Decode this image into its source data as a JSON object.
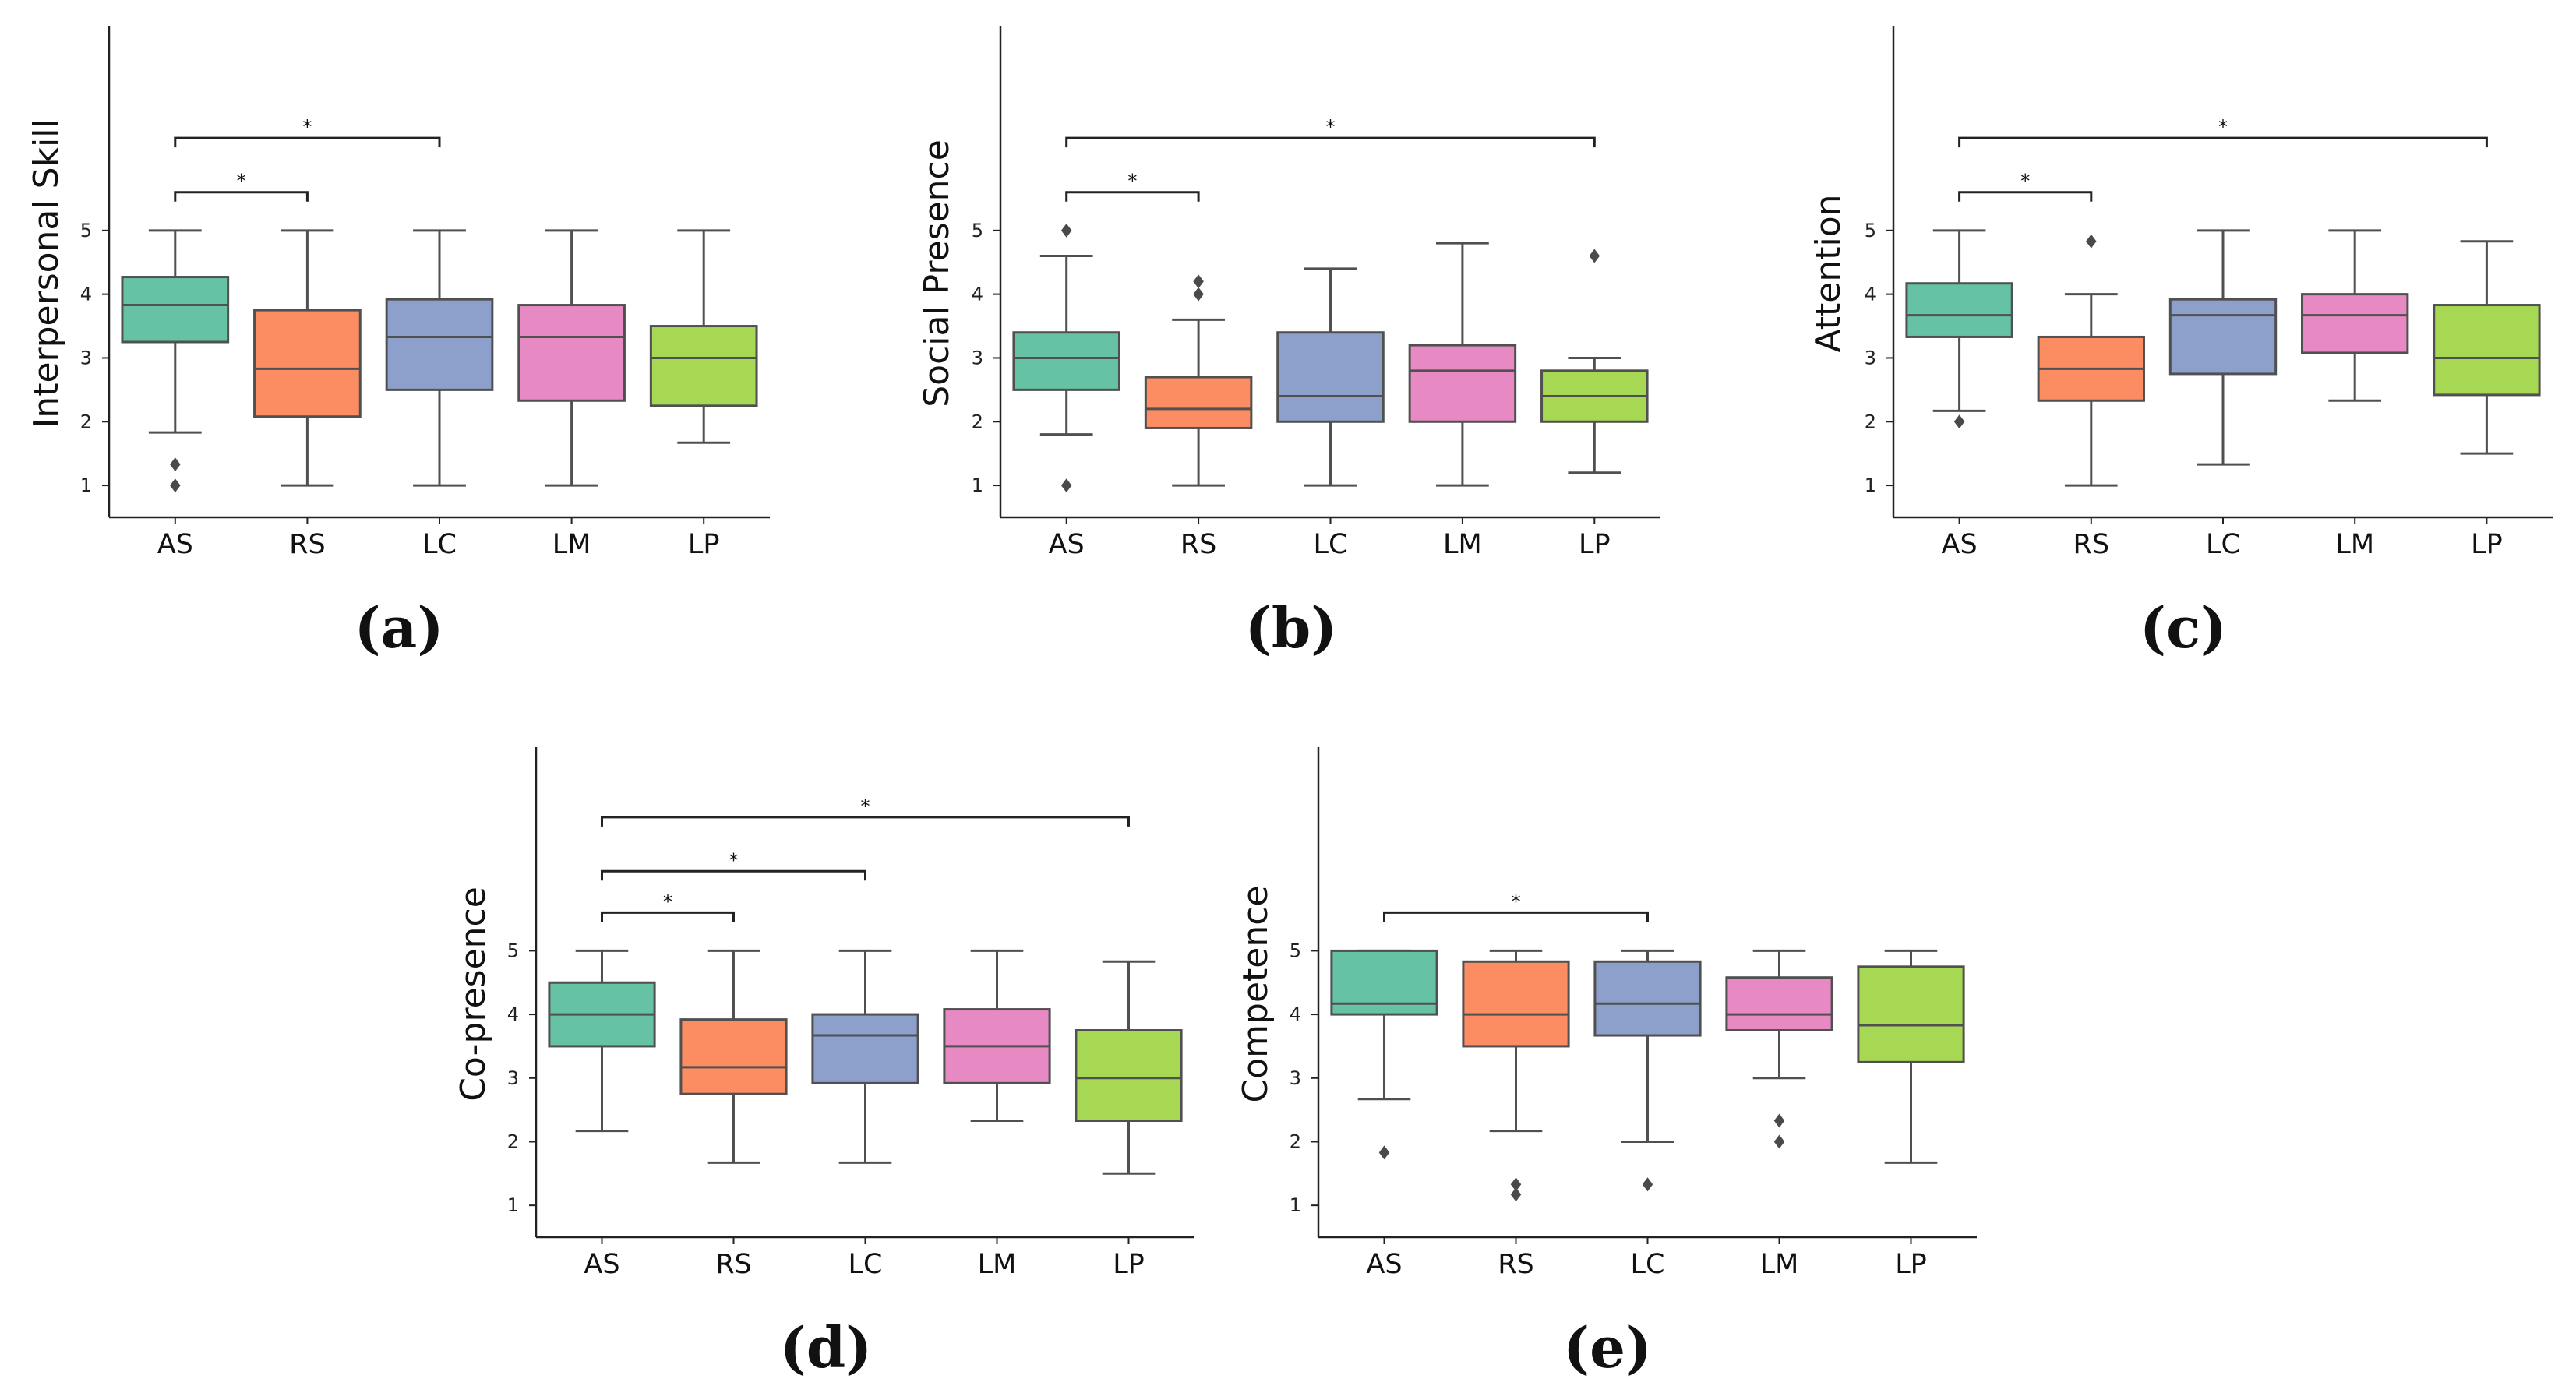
{
  "figure": {
    "type": "box-plot grid",
    "panel_count": 5
  },
  "chart_data": [
    {
      "id": "a",
      "type": "box",
      "panel_label": "(a)",
      "ylabel": "Interpersonal Skill",
      "xlabel": "",
      "ylim": [
        0.5,
        8.2
      ],
      "yticks": [
        1,
        2,
        3,
        4,
        5
      ],
      "categories": [
        "AS",
        "RS",
        "LC",
        "LM",
        "LP"
      ],
      "colors": [
        "#66c2a5",
        "#fc8d62",
        "#8da0cb",
        "#e78ac3",
        "#a6d854"
      ],
      "boxes": [
        {
          "whislo": 1.83,
          "q1": 3.25,
          "med": 3.83,
          "q3": 4.27,
          "whishi": 5.0,
          "fliers": [
            1.33,
            1.0
          ]
        },
        {
          "whislo": 1.0,
          "q1": 2.08,
          "med": 2.83,
          "q3": 3.75,
          "whishi": 5.0,
          "fliers": []
        },
        {
          "whislo": 1.0,
          "q1": 2.5,
          "med": 3.33,
          "q3": 3.92,
          "whishi": 5.0,
          "fliers": []
        },
        {
          "whislo": 1.0,
          "q1": 2.33,
          "med": 3.33,
          "q3": 3.83,
          "whishi": 5.0,
          "fliers": []
        },
        {
          "whislo": 1.67,
          "q1": 2.25,
          "med": 3.0,
          "q3": 3.5,
          "whishi": 5.0,
          "fliers": []
        }
      ],
      "significance": [
        {
          "from": 0,
          "to": 1,
          "y": 5.6,
          "label": "*"
        },
        {
          "from": 0,
          "to": 2,
          "y": 6.45,
          "label": "*"
        }
      ]
    },
    {
      "id": "b",
      "type": "box",
      "panel_label": "(b)",
      "ylabel": "Social Presence",
      "xlabel": "",
      "ylim": [
        0.5,
        8.2
      ],
      "yticks": [
        1,
        2,
        3,
        4,
        5
      ],
      "categories": [
        "AS",
        "RS",
        "LC",
        "LM",
        "LP"
      ],
      "colors": [
        "#66c2a5",
        "#fc8d62",
        "#8da0cb",
        "#e78ac3",
        "#a6d854"
      ],
      "boxes": [
        {
          "whislo": 1.8,
          "q1": 2.5,
          "med": 3.0,
          "q3": 3.4,
          "whishi": 4.6,
          "fliers": [
            5.0,
            1.0
          ]
        },
        {
          "whislo": 1.0,
          "q1": 1.9,
          "med": 2.2,
          "q3": 2.7,
          "whishi": 3.6,
          "fliers": [
            4.2,
            4.0
          ]
        },
        {
          "whislo": 1.0,
          "q1": 2.0,
          "med": 2.4,
          "q3": 3.4,
          "whishi": 4.4,
          "fliers": []
        },
        {
          "whislo": 1.0,
          "q1": 2.0,
          "med": 2.8,
          "q3": 3.2,
          "whishi": 4.8,
          "fliers": []
        },
        {
          "whislo": 1.2,
          "q1": 2.0,
          "med": 2.4,
          "q3": 2.8,
          "whishi": 3.0,
          "fliers": [
            4.6
          ]
        }
      ],
      "significance": [
        {
          "from": 0,
          "to": 1,
          "y": 5.6,
          "label": "*"
        },
        {
          "from": 0,
          "to": 4,
          "y": 6.45,
          "label": "*"
        }
      ]
    },
    {
      "id": "c",
      "type": "box",
      "panel_label": "(c)",
      "ylabel": "Attention",
      "xlabel": "",
      "ylim": [
        0.5,
        8.2
      ],
      "yticks": [
        1,
        2,
        3,
        4,
        5
      ],
      "categories": [
        "AS",
        "RS",
        "LC",
        "LM",
        "LP"
      ],
      "colors": [
        "#66c2a5",
        "#fc8d62",
        "#8da0cb",
        "#e78ac3",
        "#a6d854"
      ],
      "boxes": [
        {
          "whislo": 2.17,
          "q1": 3.33,
          "med": 3.67,
          "q3": 4.17,
          "whishi": 5.0,
          "fliers": [
            2.0
          ]
        },
        {
          "whislo": 1.0,
          "q1": 2.33,
          "med": 2.83,
          "q3": 3.33,
          "whishi": 4.0,
          "fliers": [
            4.83
          ]
        },
        {
          "whislo": 1.33,
          "q1": 2.75,
          "med": 3.67,
          "q3": 3.92,
          "whishi": 5.0,
          "fliers": []
        },
        {
          "whislo": 2.33,
          "q1": 3.08,
          "med": 3.67,
          "q3": 4.0,
          "whishi": 5.0,
          "fliers": []
        },
        {
          "whislo": 1.5,
          "q1": 2.42,
          "med": 3.0,
          "q3": 3.83,
          "whishi": 4.83,
          "fliers": []
        }
      ],
      "significance": [
        {
          "from": 0,
          "to": 1,
          "y": 5.6,
          "label": "*"
        },
        {
          "from": 0,
          "to": 4,
          "y": 6.45,
          "label": "*"
        }
      ]
    },
    {
      "id": "d",
      "type": "box",
      "panel_label": "(d)",
      "ylabel": "Co-presence",
      "xlabel": "",
      "ylim": [
        0.5,
        8.2
      ],
      "yticks": [
        1,
        2,
        3,
        4,
        5
      ],
      "categories": [
        "AS",
        "RS",
        "LC",
        "LM",
        "LP"
      ],
      "colors": [
        "#66c2a5",
        "#fc8d62",
        "#8da0cb",
        "#e78ac3",
        "#a6d854"
      ],
      "boxes": [
        {
          "whislo": 2.17,
          "q1": 3.5,
          "med": 4.0,
          "q3": 4.5,
          "whishi": 5.0,
          "fliers": []
        },
        {
          "whislo": 1.67,
          "q1": 2.75,
          "med": 3.17,
          "q3": 3.92,
          "whishi": 5.0,
          "fliers": []
        },
        {
          "whislo": 1.67,
          "q1": 2.92,
          "med": 3.67,
          "q3": 4.0,
          "whishi": 5.0,
          "fliers": []
        },
        {
          "whislo": 2.33,
          "q1": 2.92,
          "med": 3.5,
          "q3": 4.08,
          "whishi": 5.0,
          "fliers": []
        },
        {
          "whislo": 1.5,
          "q1": 2.33,
          "med": 3.0,
          "q3": 3.75,
          "whishi": 4.83,
          "fliers": []
        }
      ],
      "significance": [
        {
          "from": 0,
          "to": 1,
          "y": 5.6,
          "label": "*"
        },
        {
          "from": 0,
          "to": 2,
          "y": 6.25,
          "label": "*"
        },
        {
          "from": 0,
          "to": 4,
          "y": 7.1,
          "label": "*"
        }
      ]
    },
    {
      "id": "e",
      "type": "box",
      "panel_label": "(e)",
      "ylabel": "Competence",
      "xlabel": "",
      "ylim": [
        0.5,
        8.2
      ],
      "yticks": [
        1,
        2,
        3,
        4,
        5
      ],
      "categories": [
        "AS",
        "RS",
        "LC",
        "LM",
        "LP"
      ],
      "colors": [
        "#66c2a5",
        "#fc8d62",
        "#8da0cb",
        "#e78ac3",
        "#a6d854"
      ],
      "boxes": [
        {
          "whislo": 2.67,
          "q1": 4.0,
          "med": 4.17,
          "q3": 5.0,
          "whishi": 5.0,
          "fliers": [
            1.83
          ]
        },
        {
          "whislo": 2.17,
          "q1": 3.5,
          "med": 4.0,
          "q3": 4.83,
          "whishi": 5.0,
          "fliers": [
            1.33,
            1.17
          ]
        },
        {
          "whislo": 2.0,
          "q1": 3.67,
          "med": 4.17,
          "q3": 4.83,
          "whishi": 5.0,
          "fliers": [
            1.33
          ]
        },
        {
          "whislo": 3.0,
          "q1": 3.75,
          "med": 4.0,
          "q3": 4.58,
          "whishi": 5.0,
          "fliers": [
            2.33,
            2.0
          ]
        },
        {
          "whislo": 1.67,
          "q1": 3.25,
          "med": 3.83,
          "q3": 4.75,
          "whishi": 5.0,
          "fliers": []
        }
      ],
      "significance": [
        {
          "from": 0,
          "to": 2,
          "y": 5.6,
          "label": "*"
        }
      ]
    }
  ]
}
